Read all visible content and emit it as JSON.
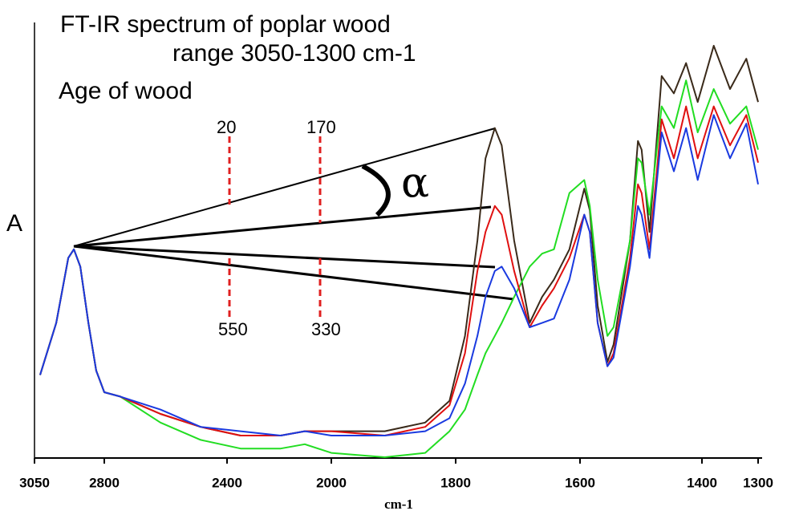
{
  "chart_data": {
    "type": "line",
    "title": "FT-IR spectrum of poplar wood",
    "subtitle": "range 3050-1300 cm-1",
    "annotation": "Age of wood",
    "ylabel": "A",
    "xlabel": "cm-1",
    "age_labels": [
      "20",
      "170",
      "550",
      "330"
    ],
    "angle_label": "α",
    "x": [
      3030,
      2972,
      2929,
      2909,
      2886,
      2857,
      2829,
      2800,
      2748,
      2617,
      2486,
      2348,
      2194,
      2102,
      2000,
      1914,
      1849,
      1810,
      1785,
      1765,
      1752,
      1737,
      1726,
      1706,
      1681,
      1661,
      1642,
      1617,
      1593,
      1584,
      1571,
      1555,
      1545,
      1518,
      1505,
      1499,
      1486,
      1466,
      1446,
      1426,
      1407,
      1379,
      1350,
      1321,
      1300
    ],
    "series": [
      {
        "color": "#3a2a1a",
        "values": [
          0.19,
          0.31,
          0.46,
          0.48,
          0.44,
          0.31,
          0.2,
          0.15,
          0.14,
          0.1,
          0.07,
          0.05,
          0.05,
          0.06,
          0.06,
          0.06,
          0.08,
          0.13,
          0.28,
          0.5,
          0.69,
          0.76,
          0.72,
          0.5,
          0.31,
          0.37,
          0.41,
          0.48,
          0.62,
          0.57,
          0.35,
          0.22,
          0.26,
          0.5,
          0.73,
          0.71,
          0.52,
          0.88,
          0.84,
          0.91,
          0.82,
          0.95,
          0.85,
          0.92,
          0.82
        ]
      },
      {
        "color": "#22dd22",
        "values": [
          0.19,
          0.31,
          0.46,
          0.48,
          0.44,
          0.31,
          0.2,
          0.15,
          0.14,
          0.08,
          0.04,
          0.02,
          0.02,
          0.03,
          0.01,
          0.0,
          0.01,
          0.06,
          0.11,
          0.19,
          0.24,
          0.28,
          0.31,
          0.37,
          0.44,
          0.47,
          0.48,
          0.61,
          0.64,
          0.58,
          0.41,
          0.28,
          0.3,
          0.5,
          0.69,
          0.68,
          0.56,
          0.81,
          0.76,
          0.87,
          0.75,
          0.85,
          0.77,
          0.81,
          0.71
        ]
      },
      {
        "color": "#e01010",
        "values": [
          0.19,
          0.31,
          0.46,
          0.48,
          0.44,
          0.31,
          0.2,
          0.15,
          0.14,
          0.1,
          0.07,
          0.05,
          0.05,
          0.06,
          0.06,
          0.05,
          0.07,
          0.12,
          0.24,
          0.43,
          0.52,
          0.58,
          0.56,
          0.43,
          0.3,
          0.35,
          0.39,
          0.46,
          0.56,
          0.52,
          0.31,
          0.21,
          0.24,
          0.46,
          0.63,
          0.61,
          0.48,
          0.78,
          0.69,
          0.81,
          0.69,
          0.81,
          0.72,
          0.79,
          0.68
        ]
      },
      {
        "color": "#1a3ae0",
        "values": [
          0.19,
          0.31,
          0.46,
          0.48,
          0.44,
          0.31,
          0.2,
          0.15,
          0.14,
          0.11,
          0.07,
          0.06,
          0.05,
          0.06,
          0.05,
          0.05,
          0.06,
          0.09,
          0.17,
          0.28,
          0.37,
          0.43,
          0.44,
          0.39,
          0.3,
          0.31,
          0.32,
          0.41,
          0.56,
          0.52,
          0.31,
          0.21,
          0.23,
          0.44,
          0.58,
          0.56,
          0.46,
          0.75,
          0.66,
          0.76,
          0.64,
          0.79,
          0.69,
          0.77,
          0.63
        ]
      }
    ],
    "xlim": [
      3050,
      1300
    ],
    "xticks": [
      3050,
      2800,
      2400,
      2000,
      1800,
      1600,
      1400,
      1300
    ],
    "ylim": [
      0,
      1
    ]
  }
}
